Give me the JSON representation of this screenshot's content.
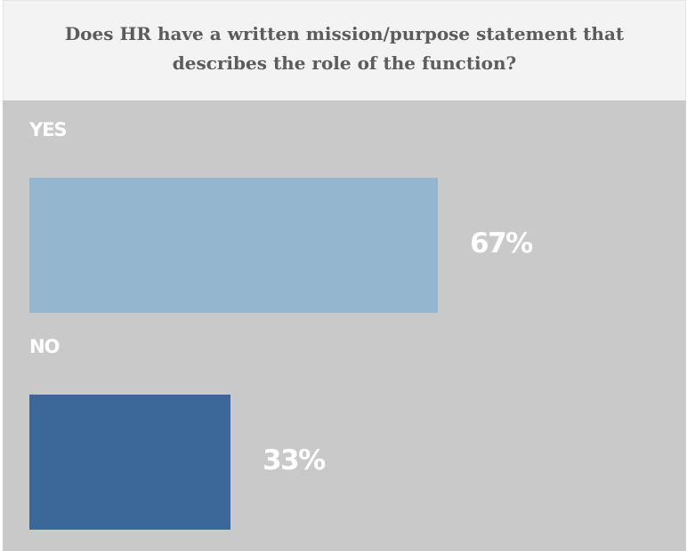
{
  "chart_data": {
    "type": "bar",
    "orientation": "horizontal",
    "title": "Does HR have a written mission/purpose statement that describes the role of the function?",
    "categories": [
      "YES",
      "NO"
    ],
    "values": [
      67,
      33
    ],
    "value_labels": [
      "67%",
      "33%"
    ],
    "unit": "%",
    "xlim": [
      0,
      100
    ],
    "grid": false,
    "legend": "none",
    "bar_colors": [
      "#94b7cf",
      "#3b6898"
    ]
  },
  "colors": {
    "header_bg": "#f3f3f3",
    "plot_bg": "#c9c9c9",
    "title_text": "#5c5c5c",
    "label_text": "#ffffff"
  }
}
